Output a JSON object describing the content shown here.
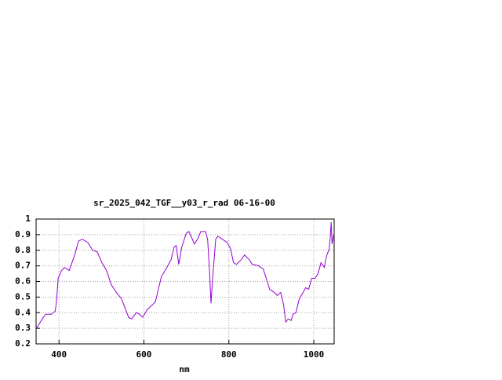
{
  "chart_data": {
    "type": "line",
    "title": "sr_2025_042_TGF__y03_r_rad 06-16-00",
    "x_label": "nm",
    "x": [
      347,
      363,
      369,
      382,
      391,
      394,
      398,
      406,
      413,
      424,
      437,
      446,
      455,
      468,
      479,
      490,
      501,
      512,
      523,
      535,
      547,
      557,
      564,
      571,
      582,
      590,
      597,
      608,
      616,
      627,
      634,
      641,
      652,
      664,
      671,
      676,
      682,
      689,
      700,
      706,
      711,
      719,
      726,
      734,
      745,
      750,
      754,
      758,
      761,
      769,
      774,
      785,
      796,
      804,
      811,
      818,
      829,
      837,
      848,
      855,
      870,
      881,
      888,
      896,
      907,
      914,
      922,
      929,
      934,
      940,
      947,
      951,
      958,
      966,
      973,
      981,
      988,
      995,
      1003,
      1010,
      1017,
      1025,
      1028,
      1032,
      1036,
      1039,
      1041,
      1043,
      1047
    ],
    "series": [
      {
        "color": "#9400d3",
        "values": [
          0.3,
          0.37,
          0.39,
          0.39,
          0.41,
          0.47,
          0.62,
          0.67,
          0.69,
          0.67,
          0.77,
          0.86,
          0.87,
          0.85,
          0.8,
          0.79,
          0.72,
          0.67,
          0.58,
          0.53,
          0.49,
          0.42,
          0.37,
          0.36,
          0.4,
          0.39,
          0.37,
          0.42,
          0.44,
          0.47,
          0.55,
          0.63,
          0.68,
          0.74,
          0.82,
          0.83,
          0.71,
          0.82,
          0.91,
          0.92,
          0.89,
          0.84,
          0.87,
          0.92,
          0.92,
          0.87,
          0.69,
          0.46,
          0.59,
          0.87,
          0.89,
          0.87,
          0.85,
          0.81,
          0.72,
          0.71,
          0.74,
          0.77,
          0.74,
          0.71,
          0.7,
          0.68,
          0.62,
          0.55,
          0.53,
          0.51,
          0.53,
          0.45,
          0.34,
          0.36,
          0.35,
          0.39,
          0.4,
          0.49,
          0.52,
          0.56,
          0.55,
          0.62,
          0.62,
          0.65,
          0.72,
          0.69,
          0.74,
          0.78,
          0.8,
          0.89,
          0.98,
          0.84,
          0.9
        ]
      }
    ],
    "xlim": [
      346,
      1048
    ],
    "xticks": [
      400,
      600,
      800,
      1000
    ],
    "ylim": [
      0.2,
      1
    ],
    "yticks": [
      0.2,
      0.3,
      0.4,
      0.5,
      0.6,
      0.7,
      0.8,
      0.9,
      1
    ],
    "grid": true
  }
}
